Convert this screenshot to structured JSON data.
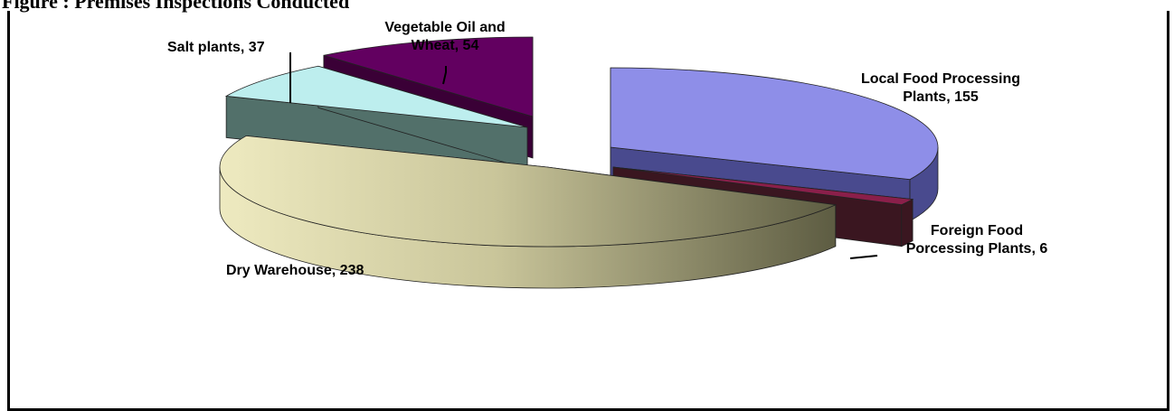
{
  "figure": {
    "caption": "Figure : Premises Inspections Conducted"
  },
  "chart_data": {
    "type": "pie",
    "title": "",
    "three_d": true,
    "exploded": true,
    "legend": "none",
    "slices": [
      {
        "name": "Local Food Processing Plants",
        "value": 155,
        "color": "#8e8ee8",
        "label_lines": [
          "Local Food Processing",
          "Plants, 155"
        ]
      },
      {
        "name": "Foreign Food Porcessing Plants",
        "value": 6,
        "color": "#8a1f4a",
        "label_lines": [
          "Foreign Food",
          "Porcessing Plants, 6"
        ]
      },
      {
        "name": "Dry Warehouse",
        "value": 238,
        "color": "#eeeac0",
        "label_lines": [
          "Dry Warehouse, 238"
        ]
      },
      {
        "name": "Salt plants",
        "value": 37,
        "color": "#bdeeee",
        "label_lines": [
          "Salt plants, 37"
        ]
      },
      {
        "name": "Vegetable Oil and Wheat",
        "value": 54,
        "color": "#620060",
        "label_lines": [
          "Vegetable Oil and",
          "Wheat, 54"
        ]
      }
    ]
  }
}
